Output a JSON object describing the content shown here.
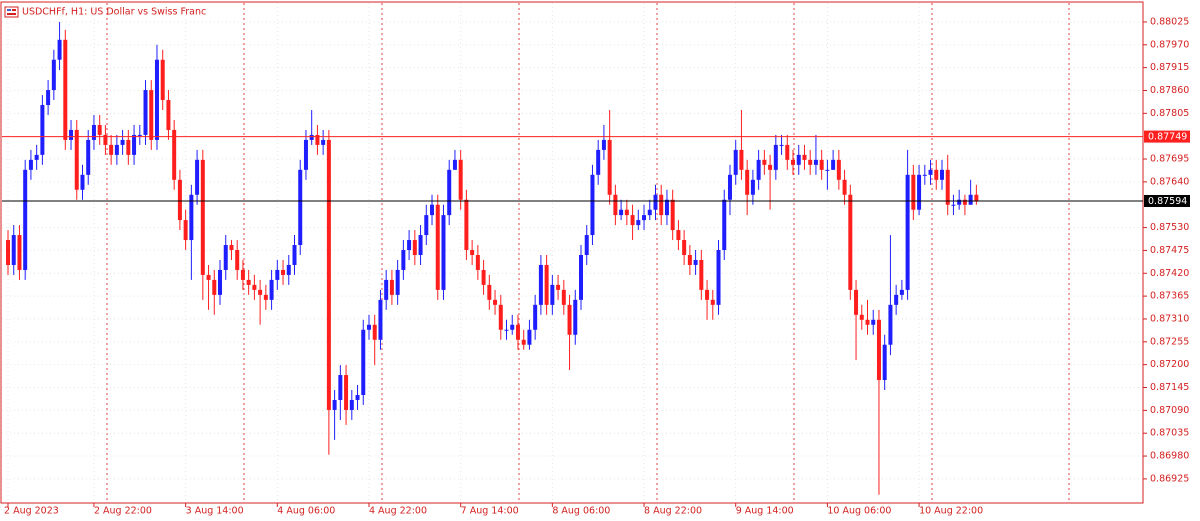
{
  "chart_data": {
    "type": "candlestick",
    "title": "USDCHFf, H1:  US Dollar vs Swiss Franc",
    "up_color": "#1e1eff",
    "down_color": "#ff1e1e",
    "grid": true,
    "ylim": [
      0.86867,
      0.88073
    ],
    "yticks": [
      0.88025,
      {
        "value": 0.8797,
        "label": "0.87970"
      },
      0.87915,
      {
        "value": 0.8786,
        "label": "0.87860"
      },
      0.87805,
      0.87695,
      {
        "value": 0.8764,
        "label": "0.87640"
      },
      {
        "value": 0.8753,
        "label": "0.87530"
      },
      0.87475,
      {
        "value": 0.8742,
        "label": "0.87420"
      },
      0.87365,
      {
        "value": 0.8731,
        "label": "0.87310"
      },
      0.87255,
      {
        "value": 0.872,
        "label": "0.87200"
      },
      0.87145,
      {
        "value": 0.8709,
        "label": "0.87090"
      },
      0.87035,
      {
        "value": 0.8698,
        "label": "0.86980"
      },
      0.86925
    ],
    "price_lines": [
      {
        "value": 0.87749,
        "color": "#ff2020"
      },
      {
        "value": 0.87594,
        "color": "#000000"
      }
    ],
    "categories": [
      "2 Aug 2023",
      null,
      null,
      null,
      null,
      null,
      null,
      null,
      null,
      null,
      null,
      null,
      null,
      null,
      null,
      "2 Aug 22:00",
      null,
      null,
      null,
      null,
      null,
      null,
      null,
      null,
      null,
      null,
      null,
      null,
      null,
      null,
      null,
      "3 Aug 14:00",
      null,
      null,
      null,
      null,
      null,
      null,
      null,
      null,
      null,
      null,
      null,
      null,
      null,
      null,
      null,
      "4 Aug 06:00",
      null,
      null,
      null,
      null,
      null,
      null,
      null,
      null,
      null,
      null,
      null,
      null,
      null,
      null,
      null,
      "4 Aug 22:00",
      null,
      null,
      null,
      null,
      null,
      null,
      null,
      null,
      null,
      null,
      null,
      null,
      null,
      null,
      null,
      "7 Aug 14:00",
      null,
      null,
      null,
      null,
      null,
      null,
      null,
      null,
      null,
      null,
      null,
      null,
      null,
      null,
      null,
      "8 Aug 06:00",
      null,
      null,
      null,
      null,
      null,
      null,
      null,
      null,
      null,
      null,
      null,
      null,
      null,
      null,
      null,
      "8 Aug 22:00",
      null,
      null,
      null,
      null,
      null,
      null,
      null,
      null,
      null,
      null,
      null,
      null,
      null,
      null,
      null,
      "9 Aug 14:00",
      null,
      null,
      null,
      null,
      null,
      null,
      null,
      null,
      null,
      null,
      null,
      null,
      null,
      null,
      null,
      "10 Aug 06:00",
      null,
      null,
      null,
      null,
      null,
      null,
      null,
      null,
      null,
      null,
      null,
      null,
      null,
      null,
      null,
      "10 Aug 22:00",
      null,
      null,
      null,
      null,
      null,
      null,
      null,
      null,
      null,
      null
    ],
    "ohlc": [
      [
        0.875,
        0.87524,
        0.87416,
        0.8744
      ],
      [
        0.8744,
        0.87536,
        0.87416,
        0.87512
      ],
      [
        0.87512,
        0.87536,
        0.87404,
        0.87428
      ],
      [
        0.87428,
        0.87693,
        0.87404,
        0.87669
      ],
      [
        0.87669,
        0.87717,
        0.87645,
        0.87693
      ],
      [
        0.87693,
        0.87729,
        0.87669,
        0.87705
      ],
      [
        0.87705,
        0.87849,
        0.87681,
        0.87825
      ],
      [
        0.87825,
        0.87885,
        0.87801,
        0.87861
      ],
      [
        0.87861,
        0.87958,
        0.87837,
        0.87934
      ],
      [
        0.87934,
        0.88025,
        0.87909,
        0.87982
      ],
      [
        0.87982,
        0.88006,
        0.87717,
        0.87741
      ],
      [
        0.87741,
        0.87789,
        0.87717,
        0.87765
      ],
      [
        0.87765,
        0.87789,
        0.87597,
        0.87621
      ],
      [
        0.87621,
        0.87681,
        0.87597,
        0.87657
      ],
      [
        0.87657,
        0.87765,
        0.87633,
        0.87741
      ],
      [
        0.87741,
        0.87801,
        0.87717,
        0.87777
      ],
      [
        0.87777,
        0.87801,
        0.87729,
        0.87753
      ],
      [
        0.87753,
        0.87777,
        0.87705,
        0.87729
      ],
      [
        0.87729,
        0.87753,
        0.87681,
        0.87705
      ],
      [
        0.87705,
        0.87753,
        0.87681,
        0.87729
      ],
      [
        0.87729,
        0.87765,
        0.87705,
        0.87741
      ],
      [
        0.87741,
        0.87765,
        0.87681,
        0.87705
      ],
      [
        0.87705,
        0.87777,
        0.87681,
        0.87753
      ],
      [
        0.87753,
        0.87777,
        0.87729,
        0.87753
      ],
      [
        0.87753,
        0.87885,
        0.87729,
        0.87861
      ],
      [
        0.87861,
        0.87885,
        0.87717,
        0.87741
      ],
      [
        0.87741,
        0.8797,
        0.87717,
        0.87934
      ],
      [
        0.87934,
        0.87958,
        0.87813,
        0.87837
      ],
      [
        0.87837,
        0.87861,
        0.87741,
        0.87765
      ],
      [
        0.87765,
        0.87789,
        0.87621,
        0.87645
      ],
      [
        0.87645,
        0.87669,
        0.87524,
        0.87548
      ],
      [
        0.87548,
        0.87573,
        0.87476,
        0.875
      ],
      [
        0.875,
        0.87633,
        0.87404,
        0.87609
      ],
      [
        0.87609,
        0.87717,
        0.87585,
        0.87693
      ],
      [
        0.87693,
        0.87717,
        0.87356,
        0.87416
      ],
      [
        0.87416,
        0.8744,
        0.87332,
        0.87404
      ],
      [
        0.87404,
        0.87428,
        0.8732,
        0.87368
      ],
      [
        0.87368,
        0.87452,
        0.87344,
        0.87428
      ],
      [
        0.87428,
        0.87512,
        0.87404,
        0.87488
      ],
      [
        0.87488,
        0.875,
        0.87452,
        0.87476
      ],
      [
        0.87476,
        0.875,
        0.87404,
        0.87428
      ],
      [
        0.87428,
        0.87452,
        0.8738,
        0.87404
      ],
      [
        0.87404,
        0.87428,
        0.87368,
        0.87392
      ],
      [
        0.87392,
        0.87416,
        0.87356,
        0.8738
      ],
      [
        0.8738,
        0.87404,
        0.87296,
        0.87368
      ],
      [
        0.87368,
        0.87392,
        0.87332,
        0.87356
      ],
      [
        0.87356,
        0.87428,
        0.87332,
        0.87404
      ],
      [
        0.87404,
        0.87452,
        0.8738,
        0.87428
      ],
      [
        0.87428,
        0.87452,
        0.87392,
        0.87416
      ],
      [
        0.87416,
        0.87464,
        0.87392,
        0.8744
      ],
      [
        0.8744,
        0.87512,
        0.87416,
        0.87488
      ],
      [
        0.87488,
        0.87693,
        0.87464,
        0.87669
      ],
      [
        0.87669,
        0.87765,
        0.87645,
        0.87741
      ],
      [
        0.87741,
        0.87813,
        0.87729,
        0.87753
      ],
      [
        0.87753,
        0.87777,
        0.87705,
        0.87729
      ],
      [
        0.87729,
        0.87765,
        0.87705,
        0.87741
      ],
      [
        0.87741,
        0.87765,
        0.86983,
        0.87091
      ],
      [
        0.87091,
        0.87139,
        0.87019,
        0.87115
      ],
      [
        0.87115,
        0.87199,
        0.87067,
        0.87175
      ],
      [
        0.87175,
        0.87199,
        0.87055,
        0.87091
      ],
      [
        0.87091,
        0.87139,
        0.87067,
        0.87115
      ],
      [
        0.87115,
        0.87151,
        0.87091,
        0.87127
      ],
      [
        0.87127,
        0.87308,
        0.87103,
        0.87284
      ],
      [
        0.87284,
        0.8732,
        0.8726,
        0.87296
      ],
      [
        0.87296,
        0.8732,
        0.87199,
        0.8726
      ],
      [
        0.8726,
        0.8738,
        0.87236,
        0.87356
      ],
      [
        0.87356,
        0.87428,
        0.87332,
        0.87404
      ],
      [
        0.87404,
        0.87428,
        0.87344,
        0.87368
      ],
      [
        0.87368,
        0.87452,
        0.87344,
        0.87428
      ],
      [
        0.87428,
        0.875,
        0.87404,
        0.87476
      ],
      [
        0.87476,
        0.87524,
        0.87452,
        0.875
      ],
      [
        0.875,
        0.87524,
        0.8744,
        0.87464
      ],
      [
        0.87464,
        0.87536,
        0.8744,
        0.87512
      ],
      [
        0.87512,
        0.87585,
        0.87488,
        0.8756
      ],
      [
        0.8756,
        0.87609,
        0.87536,
        0.87585
      ],
      [
        0.87585,
        0.87609,
        0.87356,
        0.8738
      ],
      [
        0.8738,
        0.87585,
        0.87356,
        0.8756
      ],
      [
        0.8756,
        0.87693,
        0.87536,
        0.87669
      ],
      [
        0.87669,
        0.87717,
        0.87669,
        0.87693
      ],
      [
        0.87693,
        0.87717,
        0.87573,
        0.87597
      ],
      [
        0.87597,
        0.87621,
        0.87452,
        0.87476
      ],
      [
        0.87476,
        0.875,
        0.8744,
        0.87464
      ],
      [
        0.87464,
        0.87488,
        0.87404,
        0.87428
      ],
      [
        0.87428,
        0.87452,
        0.87368,
        0.87392
      ],
      [
        0.87392,
        0.87416,
        0.87332,
        0.87356
      ],
      [
        0.87356,
        0.8738,
        0.8732,
        0.87344
      ],
      [
        0.87344,
        0.87368,
        0.8726,
        0.87284
      ],
      [
        0.87284,
        0.87308,
        0.8726,
        0.87284
      ],
      [
        0.87284,
        0.8732,
        0.87272,
        0.87296
      ],
      [
        0.87296,
        0.8732,
        0.87236,
        0.8726
      ],
      [
        0.8726,
        0.87284,
        0.87236,
        0.87248
      ],
      [
        0.87248,
        0.87308,
        0.87236,
        0.87284
      ],
      [
        0.87284,
        0.87368,
        0.8726,
        0.87344
      ],
      [
        0.87344,
        0.87464,
        0.8732,
        0.8744
      ],
      [
        0.8744,
        0.87464,
        0.8732,
        0.87344
      ],
      [
        0.87344,
        0.87416,
        0.8732,
        0.87392
      ],
      [
        0.87392,
        0.87416,
        0.87356,
        0.8738
      ],
      [
        0.8738,
        0.87404,
        0.8732,
        0.87344
      ],
      [
        0.87344,
        0.87368,
        0.87187,
        0.87272
      ],
      [
        0.87272,
        0.8738,
        0.87248,
        0.87356
      ],
      [
        0.87356,
        0.87488,
        0.87332,
        0.87464
      ],
      [
        0.87464,
        0.87536,
        0.8744,
        0.87512
      ],
      [
        0.87512,
        0.87681,
        0.87488,
        0.87657
      ],
      [
        0.87657,
        0.87741,
        0.87633,
        0.87717
      ],
      [
        0.87717,
        0.87777,
        0.87693,
        0.87741
      ],
      [
        0.87741,
        0.87813,
        0.87585,
        0.87609
      ],
      [
        0.87609,
        0.87633,
        0.87536,
        0.8756
      ],
      [
        0.8756,
        0.87597,
        0.87548,
        0.87573
      ],
      [
        0.87573,
        0.87597,
        0.87536,
        0.8756
      ],
      [
        0.8756,
        0.87585,
        0.875,
        0.87536
      ],
      [
        0.87536,
        0.87573,
        0.87524,
        0.87548
      ],
      [
        0.87548,
        0.87585,
        0.87524,
        0.8756
      ],
      [
        0.8756,
        0.87597,
        0.87548,
        0.87573
      ],
      [
        0.87573,
        0.87633,
        0.87548,
        0.87609
      ],
      [
        0.87609,
        0.87633,
        0.87536,
        0.8756
      ],
      [
        0.8756,
        0.87621,
        0.87536,
        0.87597
      ],
      [
        0.87597,
        0.87621,
        0.875,
        0.87524
      ],
      [
        0.87524,
        0.87548,
        0.87476,
        0.875
      ],
      [
        0.875,
        0.87524,
        0.8744,
        0.87464
      ],
      [
        0.87464,
        0.87488,
        0.87416,
        0.8744
      ],
      [
        0.8744,
        0.87476,
        0.87416,
        0.87452
      ],
      [
        0.87452,
        0.87476,
        0.87356,
        0.8738
      ],
      [
        0.8738,
        0.87404,
        0.87308,
        0.87356
      ],
      [
        0.87356,
        0.8738,
        0.87308,
        0.87344
      ],
      [
        0.87344,
        0.875,
        0.8732,
        0.87476
      ],
      [
        0.87476,
        0.87621,
        0.87452,
        0.87597
      ],
      [
        0.87597,
        0.87681,
        0.8756,
        0.87657
      ],
      [
        0.87657,
        0.87741,
        0.87633,
        0.87717
      ],
      [
        0.87717,
        0.87813,
        0.87645,
        0.87669
      ],
      [
        0.87669,
        0.87693,
        0.8756,
        0.87609
      ],
      [
        0.87609,
        0.87669,
        0.87585,
        0.87645
      ],
      [
        0.87645,
        0.87717,
        0.87621,
        0.87693
      ],
      [
        0.87693,
        0.87717,
        0.87657,
        0.87681
      ],
      [
        0.87681,
        0.87705,
        0.87573,
        0.87669
      ],
      [
        0.87669,
        0.87753,
        0.87645,
        0.87729
      ],
      [
        0.87729,
        0.87753,
        0.87705,
        0.87729
      ],
      [
        0.87729,
        0.87753,
        0.87669,
        0.87693
      ],
      [
        0.87693,
        0.87717,
        0.87657,
        0.87681
      ],
      [
        0.87681,
        0.87729,
        0.87657,
        0.87705
      ],
      [
        0.87705,
        0.87729,
        0.87669,
        0.87693
      ],
      [
        0.87693,
        0.87717,
        0.87657,
        0.87681
      ],
      [
        0.87681,
        0.87753,
        0.87657,
        0.87693
      ],
      [
        0.87693,
        0.87717,
        0.87645,
        0.87669
      ],
      [
        0.87669,
        0.87693,
        0.87621,
        0.87669
      ],
      [
        0.87669,
        0.87717,
        0.87669,
        0.87693
      ],
      [
        0.87693,
        0.87717,
        0.87621,
        0.87645
      ],
      [
        0.87645,
        0.87669,
        0.87585,
        0.87609
      ],
      [
        0.87609,
        0.87633,
        0.87356,
        0.8738
      ],
      [
        0.8738,
        0.87404,
        0.87211,
        0.8732
      ],
      [
        0.8732,
        0.87344,
        0.87284,
        0.87308
      ],
      [
        0.87308,
        0.87356,
        0.87272,
        0.87296
      ],
      [
        0.87296,
        0.87332,
        0.87272,
        0.87308
      ],
      [
        0.87308,
        0.87332,
        0.86887,
        0.87163
      ],
      [
        0.87163,
        0.87272,
        0.87139,
        0.87248
      ],
      [
        0.87248,
        0.87512,
        0.87223,
        0.87344
      ],
      [
        0.87344,
        0.87392,
        0.8732,
        0.87368
      ],
      [
        0.87368,
        0.87404,
        0.87356,
        0.8738
      ],
      [
        0.8738,
        0.87717,
        0.87356,
        0.87657
      ],
      [
        0.87657,
        0.87681,
        0.87548,
        0.87573
      ],
      [
        0.87573,
        0.87681,
        0.8756,
        0.87657
      ],
      [
        0.87657,
        0.87681,
        0.87633,
        0.87657
      ],
      [
        0.87657,
        0.87693,
        0.87633,
        0.87669
      ],
      [
        0.87669,
        0.87693,
        0.87621,
        0.87645
      ],
      [
        0.87645,
        0.87693,
        0.87621,
        0.87669
      ],
      [
        0.87669,
        0.87705,
        0.8756,
        0.87585
      ],
      [
        0.87585,
        0.87609,
        0.8756,
        0.87585
      ],
      [
        0.87585,
        0.87621,
        0.87573,
        0.87597
      ],
      [
        0.87597,
        0.87609,
        0.8756,
        0.87585
      ],
      [
        0.87585,
        0.87645,
        0.87585,
        0.87609
      ],
      [
        0.87609,
        0.87633,
        0.87585,
        0.87594
      ]
    ]
  }
}
